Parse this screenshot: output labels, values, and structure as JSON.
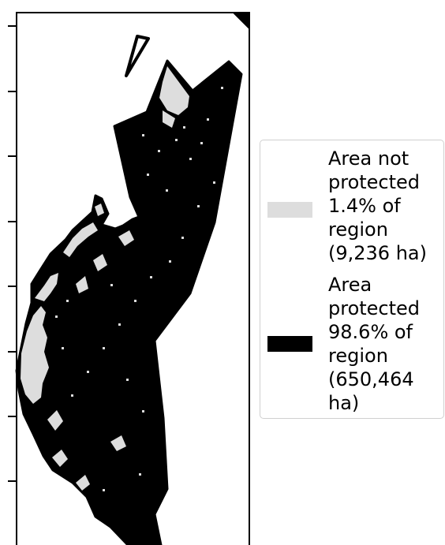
{
  "map": {
    "colors": {
      "not_protected": "#dddddd",
      "protected": "#000000",
      "frame": "#000000",
      "background": "#ffffff"
    }
  },
  "legend": {
    "entries": [
      {
        "id": "not-protected",
        "label": "Area not\nprotected\n1.4% of\nregion\n(9,236 ha)",
        "color": "#dddddd"
      },
      {
        "id": "protected",
        "label": "Area\nprotected\n98.6% of\nregion\n(650,464\nha)",
        "color": "#000000"
      }
    ]
  }
}
